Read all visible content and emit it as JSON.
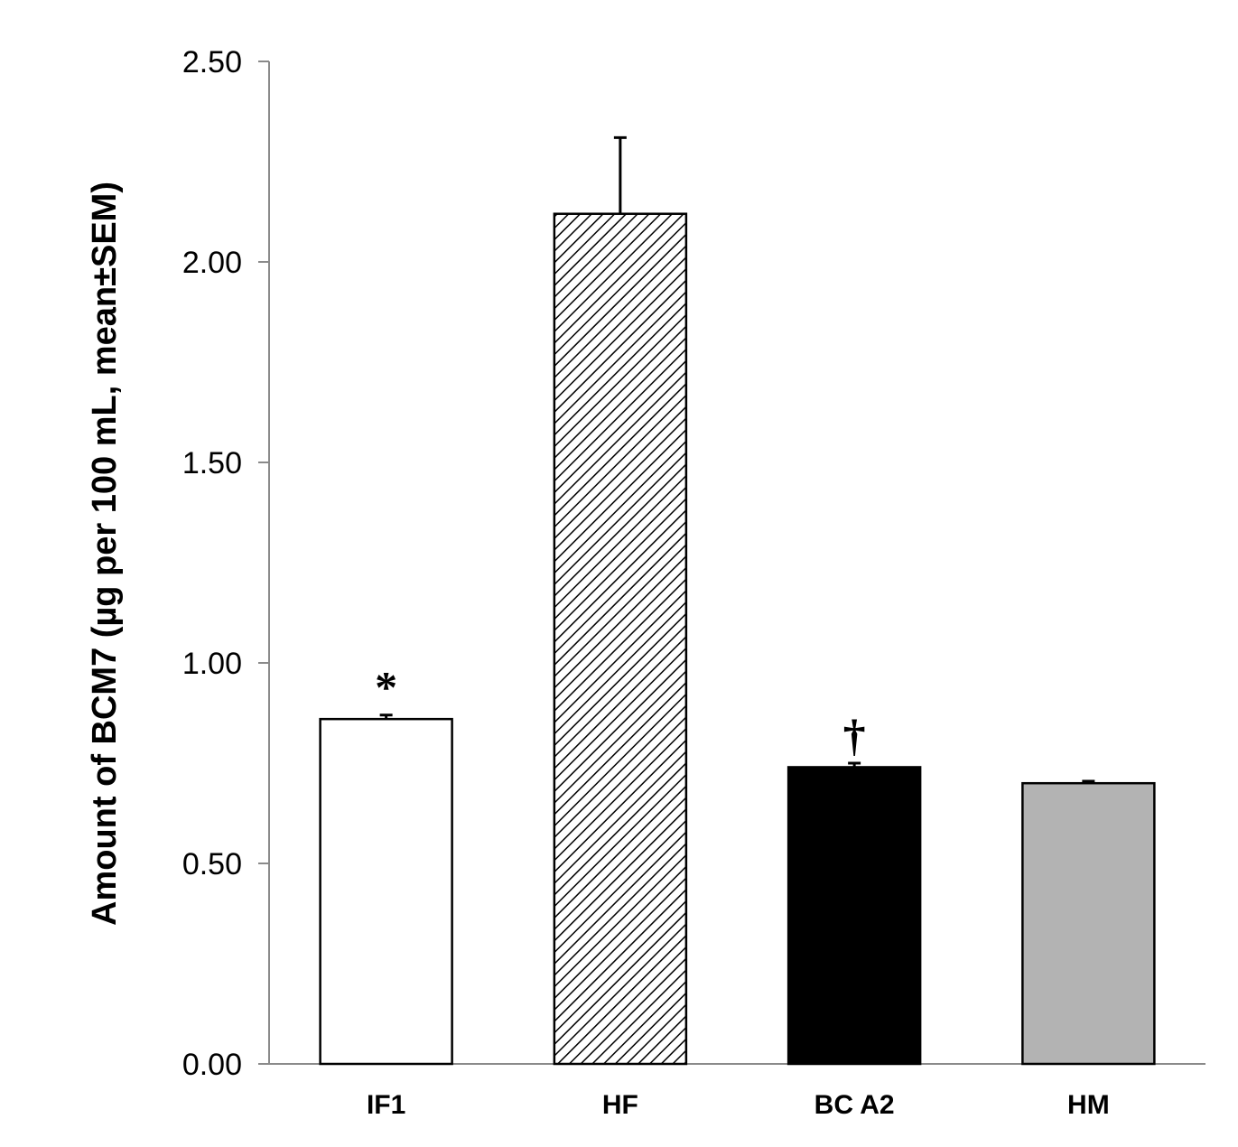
{
  "chart_data": {
    "type": "bar",
    "title": "",
    "xlabel": "",
    "ylabel": "Amount of BCM7 (µg per 100 mL, mean±SEM)",
    "ylim": [
      0,
      2.5
    ],
    "yticks": [
      "0.00",
      "0.50",
      "1.00",
      "1.50",
      "2.00",
      "2.50"
    ],
    "grid": false,
    "categories": [
      "IF1",
      "HF",
      "BC A2",
      "HM"
    ],
    "values": [
      0.86,
      2.12,
      0.74,
      0.7
    ],
    "errors": [
      0.01,
      0.19,
      0.01,
      0.005
    ],
    "annotations": [
      "*",
      "",
      "†",
      ""
    ],
    "fills": [
      "white",
      "hatched",
      "#000000",
      "#b3b3b3"
    ]
  }
}
